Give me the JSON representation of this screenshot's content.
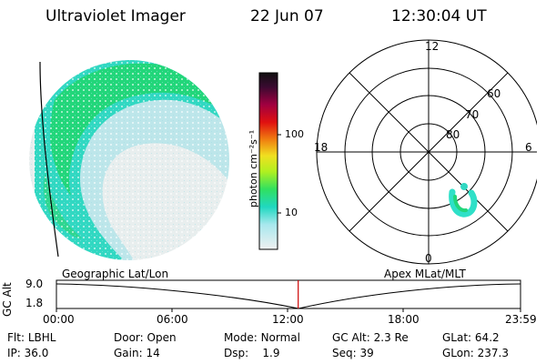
{
  "header": {
    "instrument": "Ultraviolet Imager",
    "date": "22 Jun 07",
    "time": "12:30:04 UT"
  },
  "colorbar": {
    "unit_label": "photon cm⁻²s⁻¹",
    "ticks": [
      "100",
      "10"
    ]
  },
  "polar_plot": {
    "mlt_labels": {
      "top": "12",
      "left": "18",
      "right": "6",
      "bottom": "0"
    },
    "lat_labels": [
      "60",
      "70",
      "80"
    ]
  },
  "timeline": {
    "left_label": "Geographic Lat/Lon",
    "right_label": "Apex MLat/MLT",
    "yaxis_label": "GC Alt",
    "y_ticks": [
      "9.0",
      "1.8"
    ],
    "x_ticks": [
      "00:00",
      "06:00",
      "12:00",
      "18:00",
      "23:59"
    ],
    "current_fraction": 0.521
  },
  "footer": {
    "row1": [
      {
        "label": "Flt:",
        "value": "LBHL"
      },
      {
        "label": "Door:",
        "value": "Open"
      },
      {
        "label": "Mode:",
        "value": "Normal"
      },
      {
        "label": "GC Alt:",
        "value": "2.3 Re"
      },
      {
        "label": "GLat:",
        "value": "64.2"
      }
    ],
    "row2": [
      {
        "label": "IP:",
        "value": "36.0"
      },
      {
        "label": "Gain:",
        "value": "14"
      },
      {
        "label": "Dsp:",
        "value": "1.9"
      },
      {
        "label": "Seq:",
        "value": "39"
      },
      {
        "label": "GLon:",
        "value": "237.3"
      }
    ]
  },
  "colors": {
    "bright": "#1fd67a",
    "mid": "#2fe0c8",
    "dim": "#bfe8ee",
    "background_disc": "#e6ecec",
    "timeline_marker": "#cc0000"
  }
}
